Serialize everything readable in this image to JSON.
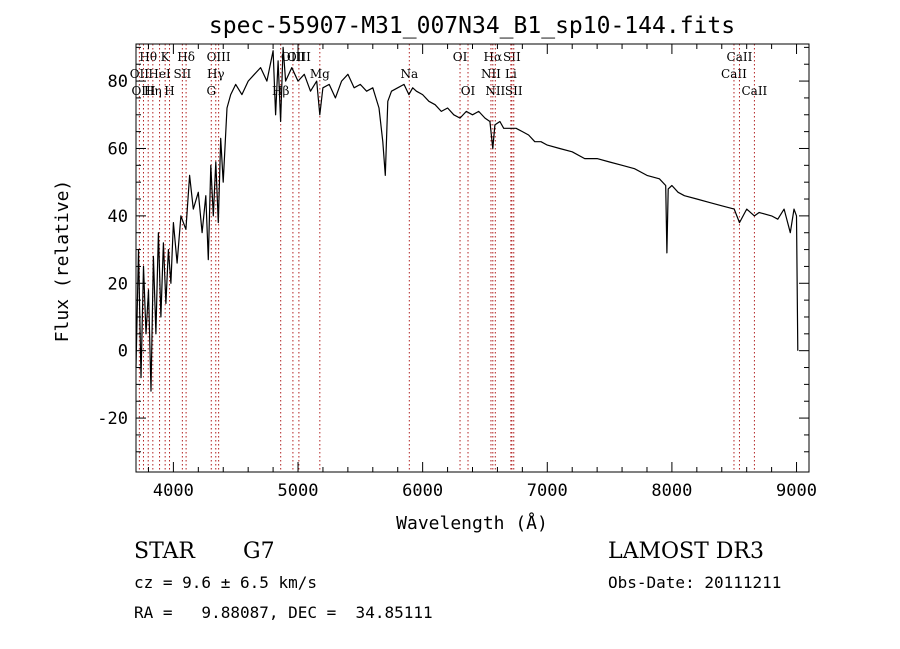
{
  "chart_data": {
    "type": "line",
    "title": "spec-55907-M31_007N34_B1_sp10-144.fits",
    "xlabel": "Wavelength (Å)",
    "ylabel": "Flux (relative)",
    "xlim": [
      3700,
      9100
    ],
    "ylim": [
      -36,
      91
    ],
    "x_ticks": [
      4000,
      5000,
      6000,
      7000,
      8000,
      9000
    ],
    "y_ticks": [
      -20,
      0,
      20,
      40,
      60,
      80
    ],
    "grid": false,
    "series": [
      {
        "name": "flux",
        "x": [
          3700,
          3720,
          3740,
          3760,
          3780,
          3800,
          3820,
          3840,
          3860,
          3880,
          3900,
          3920,
          3940,
          3960,
          3980,
          4000,
          4030,
          4060,
          4100,
          4130,
          4160,
          4200,
          4230,
          4260,
          4280,
          4300,
          4320,
          4340,
          4360,
          4380,
          4400,
          4430,
          4460,
          4500,
          4550,
          4600,
          4650,
          4700,
          4750,
          4800,
          4820,
          4840,
          4860,
          4880,
          4900,
          4950,
          5000,
          5050,
          5100,
          5150,
          5175,
          5200,
          5250,
          5300,
          5350,
          5400,
          5450,
          5500,
          5550,
          5600,
          5650,
          5680,
          5700,
          5720,
          5750,
          5800,
          5850,
          5890,
          5920,
          5950,
          6000,
          6050,
          6100,
          6150,
          6200,
          6250,
          6300,
          6350,
          6400,
          6450,
          6500,
          6540,
          6563,
          6580,
          6620,
          6650,
          6700,
          6750,
          6800,
          6850,
          6900,
          6950,
          7000,
          7100,
          7200,
          7300,
          7400,
          7500,
          7600,
          7700,
          7800,
          7900,
          7950,
          7960,
          7970,
          8000,
          8050,
          8100,
          8200,
          8300,
          8400,
          8500,
          8542,
          8600,
          8662,
          8700,
          8800,
          8850,
          8900,
          8950,
          8980,
          9000,
          9010
        ],
        "values": [
          -5,
          30,
          -8,
          25,
          5,
          18,
          -12,
          28,
          5,
          35,
          10,
          32,
          14,
          30,
          20,
          38,
          26,
          40,
          36,
          52,
          42,
          47,
          35,
          46,
          27,
          55,
          40,
          56,
          38,
          63,
          50,
          72,
          76,
          79,
          76,
          80,
          82,
          84,
          80,
          89,
          70,
          86,
          68,
          90,
          80,
          84,
          80,
          82,
          77,
          80,
          70,
          78,
          79,
          75,
          80,
          82,
          78,
          79,
          77,
          78,
          72,
          62,
          52,
          74,
          77,
          78,
          79,
          76,
          78,
          77,
          76,
          74,
          73,
          71,
          72,
          70,
          69,
          71,
          70,
          71,
          69,
          68,
          60,
          67,
          68,
          66,
          66,
          66,
          65,
          64,
          62,
          62,
          61,
          60,
          59,
          57,
          57,
          56,
          55,
          54,
          52,
          51,
          49,
          29,
          48,
          49,
          47,
          46,
          45,
          44,
          43,
          42,
          38,
          42,
          40,
          41,
          40,
          39,
          42,
          35,
          42,
          40,
          0
        ]
      }
    ],
    "lines": [
      {
        "label": "Hθ",
        "wl": 3798,
        "row": 1
      },
      {
        "label": "OII",
        "wl": 3727,
        "row": 2
      },
      {
        "label": "OIII",
        "wl": 3760,
        "row": 3
      },
      {
        "label": "Hη",
        "wl": 3835,
        "row": 3
      },
      {
        "label": "K",
        "wl": 3934,
        "row": 1
      },
      {
        "label": "HeI",
        "wl": 3889,
        "row": 2
      },
      {
        "label": "H",
        "wl": 3969,
        "row": 3
      },
      {
        "label": "Hδ",
        "wl": 4102,
        "row": 1
      },
      {
        "label": "SII",
        "wl": 4072,
        "row": 2
      },
      {
        "label": "OIII",
        "wl": 4363,
        "row": 1
      },
      {
        "label": "Hγ",
        "wl": 4340,
        "row": 2
      },
      {
        "label": "G",
        "wl": 4304,
        "row": 3
      },
      {
        "label": "Hβ",
        "wl": 4861,
        "row": 3
      },
      {
        "label": "OIII",
        "wl": 4959,
        "row": 1
      },
      {
        "label": "OIII",
        "wl": 5007,
        "row": 1
      },
      {
        "label": "Mg",
        "wl": 5175,
        "row": 2
      },
      {
        "label": "Na",
        "wl": 5893,
        "row": 2
      },
      {
        "label": "OI",
        "wl": 6300,
        "row": 1
      },
      {
        "label": "OI",
        "wl": 6364,
        "row": 3
      },
      {
        "label": "Hα",
        "wl": 6563,
        "row": 1
      },
      {
        "label": "NII",
        "wl": 6548,
        "row": 2
      },
      {
        "label": "NII",
        "wl": 6583,
        "row": 3
      },
      {
        "label": "SII",
        "wl": 6716,
        "row": 1
      },
      {
        "label": "Li",
        "wl": 6708,
        "row": 2
      },
      {
        "label": "SII",
        "wl": 6731,
        "row": 3
      },
      {
        "label": "CaII",
        "wl": 8498,
        "row": 2
      },
      {
        "label": "CaII",
        "wl": 8542,
        "row": 1
      },
      {
        "label": "CaII",
        "wl": 8662,
        "row": 3
      }
    ]
  },
  "info": {
    "object_class": "STAR",
    "subclass": "G7",
    "survey": "LAMOST DR3",
    "redshift_line": "cz = 9.6 ± 6.5 km/s",
    "obs_date_line": "Obs-Date: 20111211",
    "coords_line": "RA =   9.88087, DEC =  34.85111"
  }
}
